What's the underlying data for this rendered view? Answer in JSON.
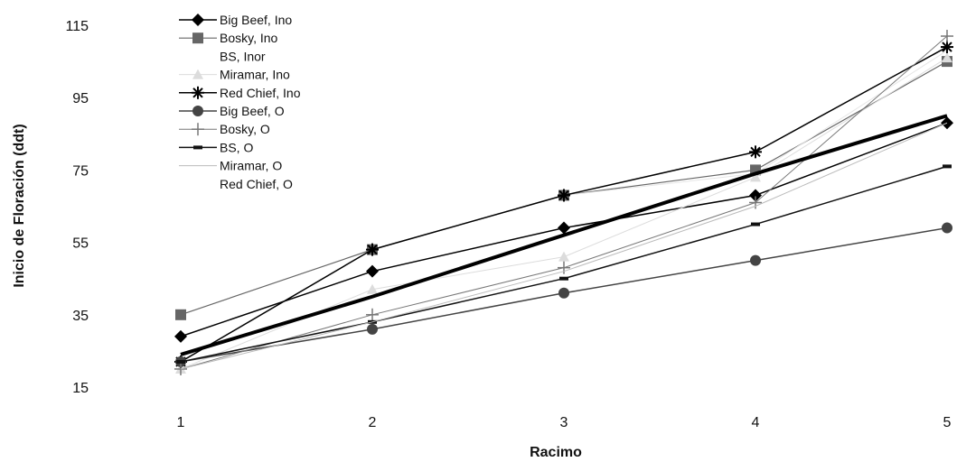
{
  "chart_data": {
    "type": "line",
    "xlabel": "Racimo",
    "ylabel": "Inicio de Floración (ddt)",
    "x": [
      1,
      2,
      3,
      4,
      5
    ],
    "xlim": [
      1,
      5
    ],
    "ylim": [
      15,
      115
    ],
    "yticks": [
      15,
      35,
      55,
      75,
      95,
      115
    ],
    "grid": false,
    "legend_position": "top-left",
    "series": [
      {
        "name": "Big Beef, Ino",
        "values": [
          29,
          47,
          59,
          68,
          88
        ],
        "color": "#000000",
        "marker": "diamond",
        "width": 1.5
      },
      {
        "name": "Bosky, Ino",
        "values": [
          35,
          53,
          68,
          75,
          105
        ],
        "color": "#666666",
        "marker": "square",
        "width": 1.2
      },
      {
        "name": "BS, Inor",
        "values": [
          22,
          53,
          68,
          74,
          108
        ],
        "color": "#e6e6e6",
        "marker": "none",
        "width": 1.0
      },
      {
        "name": "Miramar, Ino",
        "values": [
          20,
          42,
          51,
          73,
          106
        ],
        "color": "#dcdcdc",
        "marker": "triangle",
        "width": 1.0
      },
      {
        "name": "Red Chief, Ino",
        "values": [
          22,
          53,
          68,
          80,
          109
        ],
        "color": "#000000",
        "marker": "star",
        "width": 1.5
      },
      {
        "name": "Big Beef, O",
        "values": [
          22,
          31,
          41,
          50,
          59
        ],
        "color": "#444444",
        "marker": "circle",
        "width": 1.5
      },
      {
        "name": "Bosky, O",
        "values": [
          20,
          35,
          48,
          66,
          112
        ],
        "color": "#777777",
        "marker": "plus",
        "width": 1.0
      },
      {
        "name": "BS, O",
        "values": [
          22,
          33,
          45,
          60,
          76
        ],
        "color": "#111111",
        "marker": "dash",
        "width": 1.5
      },
      {
        "name": "Miramar, O",
        "values": [
          20,
          33,
          47,
          65,
          88
        ],
        "color": "#bbbbbb",
        "marker": "none",
        "width": 1.0
      },
      {
        "name": "Red Chief, O",
        "values": [
          24,
          40,
          57,
          74,
          90
        ],
        "color": "#000000",
        "marker": "none",
        "width": 4.0
      }
    ]
  }
}
